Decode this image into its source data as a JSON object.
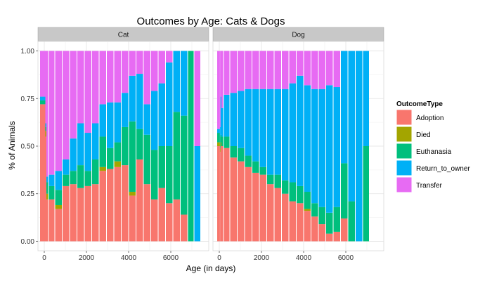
{
  "chart_data": {
    "type": "bar",
    "subtype": "stacked-proportion-histogram",
    "title": "Outcomes by Age: Cats & Dogs",
    "xlabel": "Age (in days)",
    "ylabel": "% of Animals",
    "xlim": [
      -300,
      7800
    ],
    "ylim": [
      -0.05,
      1.05
    ],
    "x_ticks": [
      0,
      2000,
      4000,
      6000
    ],
    "y_ticks": [
      0.0,
      0.25,
      0.5,
      0.75,
      1.0
    ],
    "y_tick_labels": [
      "0.00",
      "0.25",
      "0.50",
      "0.75",
      "1.00"
    ],
    "grid": true,
    "legend": {
      "title": "OutcomeType",
      "position": "right",
      "entries": [
        {
          "name": "Adoption",
          "color": "#F8766D"
        },
        {
          "name": "Died",
          "color": "#A3A500"
        },
        {
          "name": "Euthanasia",
          "color": "#00BF7D"
        },
        {
          "name": "Return_to_owner",
          "color": "#00B0F6"
        },
        {
          "name": "Transfer",
          "color": "#E76BF3"
        }
      ]
    },
    "panels": [
      {
        "name": "Cat",
        "bars": [
          {
            "x0": -200,
            "x1": 50,
            "vals": [
              0.72,
              0,
              0.02,
              0.02,
              0.24
            ]
          },
          {
            "x0": 50,
            "x1": 100,
            "vals": [
              0.55,
              0.03,
              0.02,
              0.02,
              0.38
            ]
          },
          {
            "x0": 100,
            "x1": 200,
            "vals": [
              0.22,
              0.03,
              0.06,
              0.03,
              0.66
            ]
          },
          {
            "x0": 200,
            "x1": 500,
            "vals": [
              0.22,
              0,
              0.07,
              0.06,
              0.65
            ]
          },
          {
            "x0": 500,
            "x1": 850,
            "vals": [
              0.17,
              0.02,
              0.08,
              0.1,
              0.63
            ]
          },
          {
            "x0": 850,
            "x1": 1200,
            "vals": [
              0.29,
              0,
              0.06,
              0.08,
              0.57
            ]
          },
          {
            "x0": 1200,
            "x1": 1550,
            "vals": [
              0.3,
              0,
              0.07,
              0.17,
              0.46
            ]
          },
          {
            "x0": 1550,
            "x1": 1900,
            "vals": [
              0.28,
              0,
              0.12,
              0.22,
              0.38
            ]
          },
          {
            "x0": 1900,
            "x1": 2250,
            "vals": [
              0.29,
              0,
              0.08,
              0.2,
              0.43
            ]
          },
          {
            "x0": 2250,
            "x1": 2600,
            "vals": [
              0.3,
              0,
              0.13,
              0.19,
              0.38
            ]
          },
          {
            "x0": 2600,
            "x1": 2950,
            "vals": [
              0.37,
              0.02,
              0.16,
              0.17,
              0.28
            ]
          },
          {
            "x0": 2950,
            "x1": 3300,
            "vals": [
              0.38,
              0,
              0.11,
              0.24,
              0.27
            ]
          },
          {
            "x0": 3300,
            "x1": 3650,
            "vals": [
              0.39,
              0.03,
              0.1,
              0.21,
              0.27
            ]
          },
          {
            "x0": 3650,
            "x1": 4000,
            "vals": [
              0.4,
              0,
              0.2,
              0.18,
              0.22
            ]
          },
          {
            "x0": 4000,
            "x1": 4350,
            "vals": [
              0.24,
              0.02,
              0.37,
              0.24,
              0.13
            ]
          },
          {
            "x0": 4350,
            "x1": 4700,
            "vals": [
              0.43,
              0,
              0.16,
              0.29,
              0.12
            ]
          },
          {
            "x0": 4700,
            "x1": 5050,
            "vals": [
              0.3,
              0,
              0.26,
              0.16,
              0.28
            ]
          },
          {
            "x0": 5050,
            "x1": 5400,
            "vals": [
              0.22,
              0,
              0.26,
              0.31,
              0.21
            ]
          },
          {
            "x0": 5400,
            "x1": 5750,
            "vals": [
              0.28,
              0,
              0.22,
              0.33,
              0.17
            ]
          },
          {
            "x0": 5750,
            "x1": 6100,
            "vals": [
              0.2,
              0,
              0.3,
              0.44,
              0.06
            ]
          },
          {
            "x0": 6100,
            "x1": 6450,
            "vals": [
              0.22,
              0,
              0.46,
              0.32,
              0
            ]
          },
          {
            "x0": 6450,
            "x1": 6800,
            "vals": [
              0.14,
              0,
              0.52,
              0.34,
              0
            ]
          },
          {
            "x0": 6800,
            "x1": 7100,
            "vals": [
              0.0,
              0,
              1.0,
              0,
              0
            ]
          },
          {
            "x0": 7100,
            "x1": 7400,
            "vals": [
              0.0,
              0,
              0,
              0.5,
              0.5
            ]
          }
        ]
      },
      {
        "name": "Dog",
        "bars": [
          {
            "x0": -100,
            "x1": 30,
            "vals": [
              0.5,
              0.02,
              0.05,
              0.02,
              0.41
            ]
          },
          {
            "x0": 30,
            "x1": 60,
            "vals": [
              0.47,
              0.02,
              0.06,
              0.05,
              0.4
            ]
          },
          {
            "x0": 60,
            "x1": 100,
            "vals": [
              0.5,
              0.02,
              0.04,
              0.2,
              0.24
            ]
          },
          {
            "x0": 100,
            "x1": 200,
            "vals": [
              0.5,
              0,
              0.05,
              0.15,
              0.3
            ]
          },
          {
            "x0": 200,
            "x1": 500,
            "vals": [
              0.49,
              0,
              0.06,
              0.22,
              0.23
            ]
          },
          {
            "x0": 500,
            "x1": 850,
            "vals": [
              0.44,
              0,
              0.06,
              0.28,
              0.22
            ]
          },
          {
            "x0": 850,
            "x1": 1200,
            "vals": [
              0.42,
              0,
              0.07,
              0.3,
              0.21
            ]
          },
          {
            "x0": 1200,
            "x1": 1550,
            "vals": [
              0.39,
              0,
              0.06,
              0.35,
              0.2
            ]
          },
          {
            "x0": 1550,
            "x1": 1900,
            "vals": [
              0.36,
              0,
              0.06,
              0.38,
              0.2
            ]
          },
          {
            "x0": 1900,
            "x1": 2250,
            "vals": [
              0.35,
              0,
              0.04,
              0.41,
              0.2
            ]
          },
          {
            "x0": 2250,
            "x1": 2600,
            "vals": [
              0.3,
              0,
              0.05,
              0.45,
              0.2
            ]
          },
          {
            "x0": 2600,
            "x1": 2950,
            "vals": [
              0.28,
              0,
              0.07,
              0.45,
              0.2
            ]
          },
          {
            "x0": 2950,
            "x1": 3300,
            "vals": [
              0.25,
              0,
              0.07,
              0.48,
              0.2
            ]
          },
          {
            "x0": 3300,
            "x1": 3650,
            "vals": [
              0.21,
              0,
              0.1,
              0.52,
              0.17
            ]
          },
          {
            "x0": 3650,
            "x1": 4000,
            "vals": [
              0.2,
              0,
              0.09,
              0.58,
              0.13
            ]
          },
          {
            "x0": 4000,
            "x1": 4350,
            "vals": [
              0.16,
              0.01,
              0.09,
              0.56,
              0.18
            ]
          },
          {
            "x0": 4350,
            "x1": 4700,
            "vals": [
              0.13,
              0,
              0.07,
              0.6,
              0.2
            ]
          },
          {
            "x0": 4700,
            "x1": 5050,
            "vals": [
              0.09,
              0,
              0.09,
              0.62,
              0.2
            ]
          },
          {
            "x0": 5050,
            "x1": 5400,
            "vals": [
              0.04,
              0,
              0.11,
              0.67,
              0.18
            ]
          },
          {
            "x0": 5400,
            "x1": 5750,
            "vals": [
              0.05,
              0,
              0.13,
              0.63,
              0.19
            ]
          },
          {
            "x0": 5750,
            "x1": 6100,
            "vals": [
              0.12,
              0,
              0.29,
              0.59,
              0
            ]
          },
          {
            "x0": 6100,
            "x1": 6450,
            "vals": [
              0.0,
              0,
              0.21,
              0.79,
              0
            ]
          },
          {
            "x0": 6450,
            "x1": 6800,
            "vals": [
              0.0,
              0,
              0,
              1.0,
              0
            ]
          },
          {
            "x0": 6800,
            "x1": 7100,
            "vals": [
              0.0,
              0,
              0.5,
              0.5,
              0
            ]
          }
        ]
      }
    ]
  }
}
